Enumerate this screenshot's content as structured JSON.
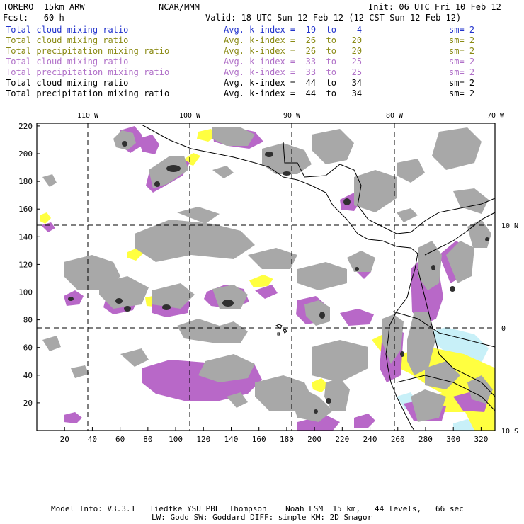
{
  "header": {
    "model": "TORERO  15km ARW",
    "org": "NCAR/MMM",
    "init": "Init: 06 UTC Fri 10 Feb 12",
    "fcst": "Fcst:   60 h",
    "valid": "Valid: 18 UTC Sun 12 Feb 12 (12 CST Sun 12 Feb 12)"
  },
  "legend": [
    {
      "field": "Total cloud mixing ratio",
      "index": "Avg. k-index =  19  to    4",
      "sm": "sm= 2",
      "color": "#2233cc"
    },
    {
      "field": "Total cloud mixing ratio",
      "index": "Avg. k-index =  26  to   20",
      "sm": "sm= 2",
      "color": "#8a8a14"
    },
    {
      "field": "Total precipitation mixing ratio",
      "index": "Avg. k-index =  26  to   20",
      "sm": "sm= 2",
      "color": "#8a8a14"
    },
    {
      "field": "Total cloud mixing ratio",
      "index": "Avg. k-index =  33  to   25",
      "sm": "sm= 2",
      "color": "#b070c8"
    },
    {
      "field": "Total precipitation mixing ratio",
      "index": "Avg. k-index =  33  to   25",
      "sm": "sm= 2",
      "color": "#b070c8"
    },
    {
      "field": "Total cloud mixing ratio",
      "index": "Avg. k-index =  44  to   34",
      "sm": "sm= 2",
      "color": "#000000"
    },
    {
      "field": "Total precipitation mixing ratio",
      "index": "Avg. k-index =  44  to   34",
      "sm": "sm= 2",
      "color": "#000000"
    }
  ],
  "map": {
    "lon_labels": [
      "110 W",
      "100 W",
      "90 W",
      "80 W",
      "70 W"
    ],
    "lat_labels": [
      "10 N",
      "0",
      "10 S"
    ],
    "x_ticks": [
      "20",
      "40",
      "60",
      "80",
      "100",
      "120",
      "140",
      "160",
      "180",
      "200",
      "220",
      "240",
      "260",
      "280",
      "300",
      "320"
    ],
    "y_ticks": [
      "20",
      "40",
      "60",
      "80",
      "100",
      "120",
      "140",
      "160",
      "180",
      "200",
      "220"
    ],
    "colors": {
      "cloud_gray": "#a8a8a8",
      "dark_core": "#303030",
      "purple": "#b868c8",
      "yellow": "#ffff40",
      "light_cyan": "#c8f0f8",
      "coast": "#000000"
    }
  },
  "footer": {
    "line1": "Model Info: V3.3.1   Tiedtke YSU PBL  Thompson    Noah LSM  15 km,   44 levels,   66 sec",
    "line2": "LW: Godd SW: Goddard DIFF: simple KM: 2D Smagor"
  }
}
